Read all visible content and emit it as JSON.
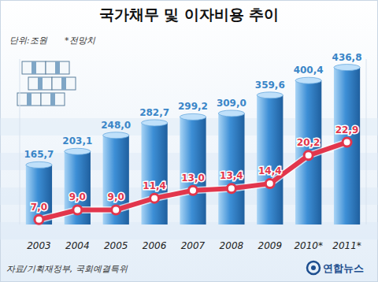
{
  "chart_data": {
    "type": "bar",
    "title": "국가채무 및 이자비용 추이",
    "subtitle": "단위:조원",
    "annotations": [
      "*전망치"
    ],
    "source": "자료/기획재정부, 국회예결특위",
    "credit": "연합뉴스",
    "categories": [
      "2003",
      "2004",
      "2005",
      "2006",
      "2007",
      "2008",
      "2009",
      "2010*",
      "2011*"
    ],
    "series": [
      {
        "type": "bar",
        "color": "#3d8fd6",
        "values": [
          165.7,
          203.1,
          248.0,
          282.7,
          299.2,
          309.0,
          359.6,
          400.4,
          436.8
        ],
        "value_labels": [
          "165,7",
          "203,1",
          "248,0",
          "282,7",
          "299,2",
          "309,0",
          "359,6",
          "400,4",
          "436,8"
        ]
      },
      {
        "type": "line",
        "axis": "y2",
        "color": "#e2364c",
        "marker": "circle",
        "values": [
          7.0,
          9.0,
          9.0,
          11.4,
          13.0,
          13.4,
          14.4,
          20.2,
          22.9
        ],
        "value_labels": [
          "7,0",
          "9,0",
          "9,0",
          "11,4",
          "13,0",
          "13,4",
          "14,4",
          "20,2",
          "22,9"
        ]
      }
    ],
    "ylim": [
      0,
      460
    ],
    "y2lim": [
      6,
      40
    ],
    "data_labels": true,
    "tick_labels": "x"
  }
}
